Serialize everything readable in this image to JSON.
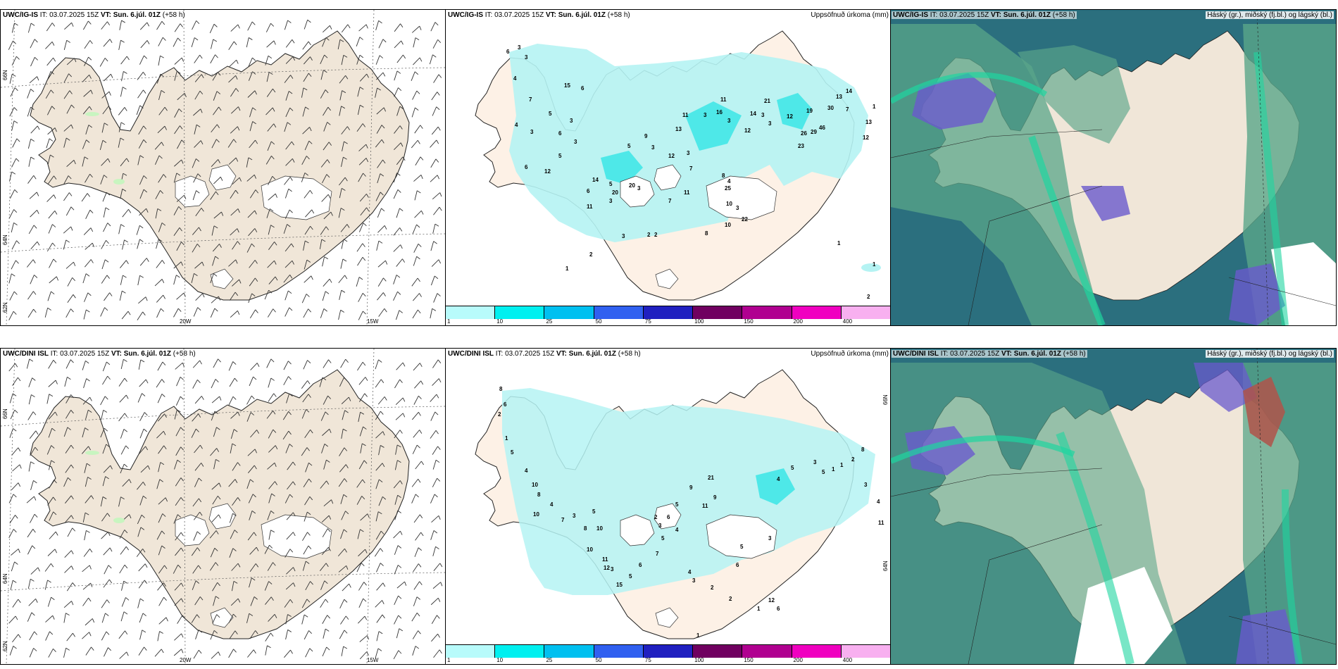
{
  "rows": [
    {
      "model": "UWC/IG-IS",
      "it_label": "IT:",
      "it_value": "03.07.2025 15Z",
      "vt_label": "VT: Sun. 6.júl. 01Z",
      "lead": "(+58 h)"
    },
    {
      "model": "UWC/DINI ISL",
      "it_label": "IT:",
      "it_value": "03.07.2025 15Z",
      "vt_label": "VT: Sun. 6.júl. 01Z",
      "lead": "(+58 h)"
    }
  ],
  "precip_title": "Uppsöfnuð úrkoma (mm)",
  "cloud_title": "Háský (gr.), miðský (fj.bl.) og lágský (bl.)",
  "axis_labels": {
    "lon_20w": "20W",
    "lon_15w": "15W",
    "lat_66n": "66N",
    "lat_64n": "64N",
    "lat_62n": "62N"
  },
  "colorbar": {
    "ticks": [
      "1",
      "10",
      "25",
      "50",
      "75",
      "100",
      "150",
      "200",
      "400"
    ],
    "colors": [
      "#b8fbfb",
      "#00f0f0",
      "#00c0f0",
      "#3060f0",
      "#2020c0",
      "#700060",
      "#b00090",
      "#f000c0",
      "#f8b0f0"
    ]
  },
  "colors": {
    "land_wind": "#f0e6d8",
    "land_precip": "#fdf1e6",
    "precip_light": "#b5f3f3",
    "precip_mid": "#4ee8e8",
    "cloud_high": "#2b6f7e",
    "cloud_mid": "#5aa68a",
    "cloud_low": "#6a5acd",
    "cloud_edge": "#1ed6a0"
  },
  "precip_values_top": [
    "6",
    "3",
    "3",
    "4",
    "15",
    "6",
    "7",
    "5",
    "3",
    "4",
    "3",
    "6",
    "3",
    "5",
    "6",
    "12",
    "14",
    "20",
    "5",
    "3",
    "6",
    "11",
    "3",
    "20",
    "5",
    "3",
    "9",
    "12",
    "7",
    "3",
    "13",
    "11",
    "3",
    "16",
    "11",
    "3",
    "12",
    "3",
    "14",
    "21",
    "3",
    "12",
    "19",
    "29",
    "46",
    "23",
    "26",
    "30",
    "14",
    "13",
    "7",
    "13",
    "12",
    "8",
    "4",
    "25",
    "22",
    "3",
    "10",
    "10",
    "8",
    "11",
    "7",
    "2",
    "3",
    "2",
    "2",
    "1",
    "1",
    "1",
    "2",
    "1"
  ],
  "precip_values_bottom": [
    "8",
    "6",
    "2",
    "1",
    "5",
    "4",
    "10",
    "8",
    "10",
    "4",
    "7",
    "3",
    "5",
    "10",
    "8",
    "10",
    "11",
    "12",
    "3",
    "15",
    "5",
    "6",
    "7",
    "5",
    "4",
    "21",
    "9",
    "11",
    "5",
    "9",
    "3",
    "2",
    "6",
    "4",
    "3",
    "2",
    "2",
    "6",
    "5",
    "3",
    "4",
    "5",
    "3",
    "5",
    "1",
    "1",
    "2",
    "8",
    "3",
    "4",
    "11",
    "12",
    "6",
    "1",
    "1"
  ]
}
